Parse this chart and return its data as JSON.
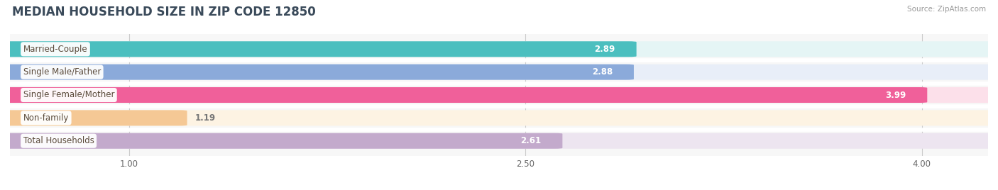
{
  "title": "MEDIAN HOUSEHOLD SIZE IN ZIP CODE 12850",
  "source": "Source: ZipAtlas.com",
  "categories": [
    "Married-Couple",
    "Single Male/Father",
    "Single Female/Mother",
    "Non-family",
    "Total Households"
  ],
  "values": [
    2.89,
    2.88,
    3.99,
    1.19,
    2.61
  ],
  "bar_colors": [
    "#4BBFBF",
    "#8BAADA",
    "#F0609A",
    "#F5C895",
    "#C3AACC"
  ],
  "bar_bg_colors": [
    "#E5F5F5",
    "#E8EEF8",
    "#FCE0EA",
    "#FDF3E3",
    "#EDE5F0"
  ],
  "xlim_min": 0.55,
  "xlim_max": 4.25,
  "data_min": 1.0,
  "data_max": 4.0,
  "xticks": [
    1.0,
    2.5,
    4.0
  ],
  "xtick_labels": [
    "1.00",
    "2.50",
    "4.00"
  ],
  "value_label_color": "#ffffff",
  "value_label_outside_color": "#777777",
  "bar_height": 0.62,
  "background_color": "#ffffff",
  "plot_bg_color": "#f7f7f7",
  "title_fontsize": 12,
  "label_fontsize": 8.5,
  "value_fontsize": 8.5,
  "tick_fontsize": 8.5,
  "title_color": "#3a4a5a",
  "source_color": "#999999"
}
